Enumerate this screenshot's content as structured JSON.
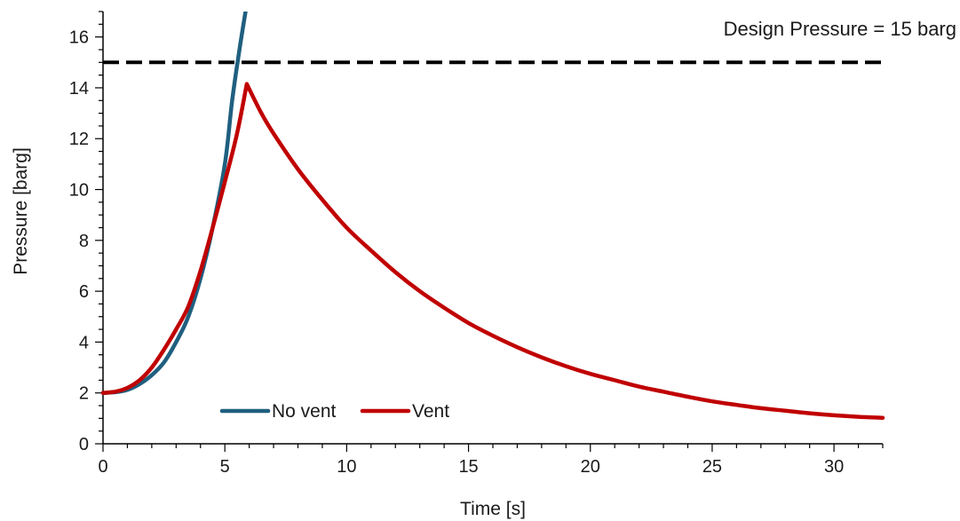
{
  "chart_data": {
    "type": "line",
    "title": "",
    "xlabel": "Time [s]",
    "ylabel": "Pressure [barg]",
    "xlim": [
      0,
      32
    ],
    "ylim": [
      0,
      17
    ],
    "x_ticks": [
      "0",
      "5",
      "10",
      "15",
      "20",
      "25",
      "30"
    ],
    "y_ticks": [
      "0",
      "2",
      "4",
      "6",
      "8",
      "10",
      "12",
      "14",
      "16"
    ],
    "grid": false,
    "legend_position": "bottom-left",
    "series": [
      {
        "name": "No vent",
        "color": "#1f5f7f",
        "x": [
          0,
          0.5,
          1,
          1.5,
          2,
          2.5,
          3,
          3.5,
          4,
          4.5,
          5,
          5.3,
          5.6,
          5.85
        ],
        "y": [
          2.0,
          2.03,
          2.12,
          2.35,
          2.7,
          3.2,
          4.0,
          5.0,
          6.5,
          8.5,
          11.0,
          13.5,
          15.5,
          17.0
        ]
      },
      {
        "name": "Vent",
        "color": "#c00000",
        "x": [
          0,
          0.5,
          1,
          1.5,
          2,
          2.5,
          3,
          3.5,
          4,
          4.5,
          5,
          5.5,
          5.9,
          6.5,
          7,
          8,
          9,
          10,
          11,
          12,
          13,
          14,
          15,
          16,
          17,
          18,
          19,
          20,
          21,
          22,
          23,
          24,
          25,
          26,
          27,
          28,
          29,
          30,
          31,
          32
        ],
        "y": [
          2.0,
          2.05,
          2.2,
          2.5,
          3.0,
          3.7,
          4.5,
          5.4,
          6.8,
          8.5,
          10.3,
          12.2,
          14.15,
          13.0,
          12.2,
          10.8,
          9.6,
          8.5,
          7.6,
          6.75,
          6.0,
          5.35,
          4.75,
          4.25,
          3.8,
          3.4,
          3.05,
          2.75,
          2.5,
          2.25,
          2.05,
          1.85,
          1.67,
          1.53,
          1.4,
          1.3,
          1.2,
          1.12,
          1.06,
          1.02
        ]
      }
    ],
    "reference_lines": [
      {
        "y": 15,
        "style": "dashed",
        "color": "#000000",
        "label": "Design Pressure = 15 barg"
      }
    ]
  }
}
